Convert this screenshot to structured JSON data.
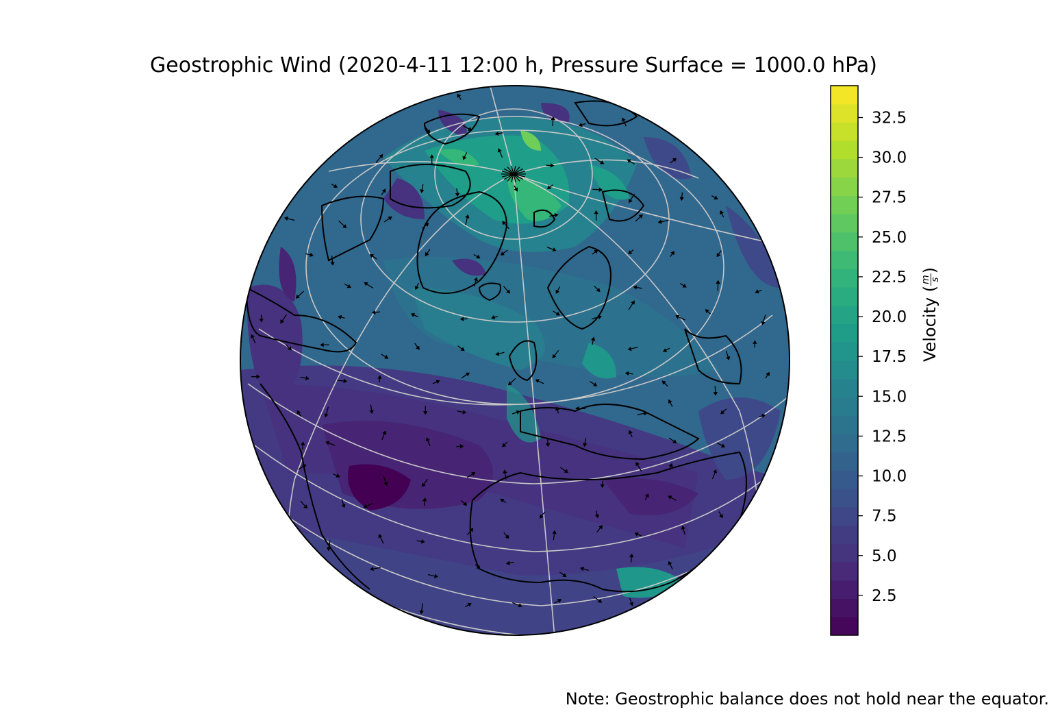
{
  "title": "Geostrophic Wind (2020-4-11 12:00 h, Pressure Surface = 1000.0 hPa)",
  "note": "Note: Geostrophic balance does not hold near the equator.",
  "colorbar": {
    "label_text": "Velocity (",
    "unit_num": "m",
    "unit_den": "s",
    "label_close": ")",
    "min": 0,
    "max": 34.5,
    "ticks": [
      "2.5",
      "5.0",
      "7.5",
      "10.0",
      "12.5",
      "15.0",
      "17.5",
      "20.0",
      "22.5",
      "25.0",
      "27.5",
      "30.0",
      "32.5"
    ],
    "tick_values": [
      2.5,
      5.0,
      7.5,
      10.0,
      12.5,
      15.0,
      17.5,
      20.0,
      22.5,
      25.0,
      27.5,
      30.0,
      32.5
    ],
    "colormap": [
      "#440154",
      "#482878",
      "#3e4989",
      "#31688e",
      "#26828e",
      "#1f9e89",
      "#35b779",
      "#6ece58",
      "#b5de2b",
      "#fde725"
    ]
  },
  "map": {
    "projection": "orthographic",
    "graticule_color": "#c8c8c8",
    "coastline_color": "#000000",
    "ocean_base_color": "#3b5088"
  }
}
